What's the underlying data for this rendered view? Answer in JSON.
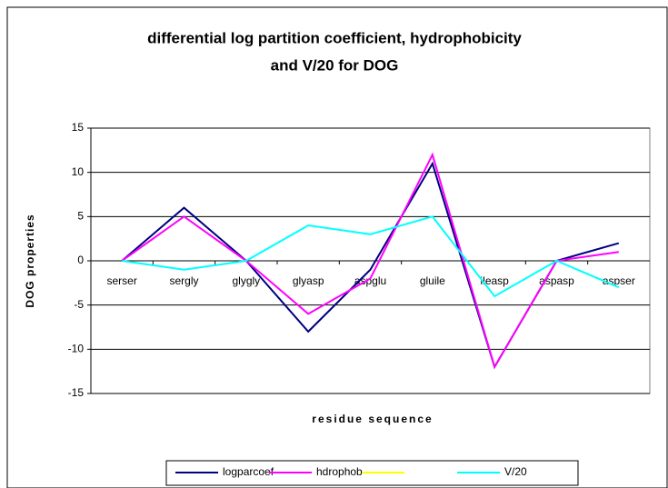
{
  "chart_data": {
    "type": "line",
    "title": [
      "differential log partition coefficient, hydrophobicity",
      "and V/20 for DOG"
    ],
    "x_label": "residue sequence",
    "y_label": "DOG properties",
    "categories": [
      "serser",
      "sergly",
      "glygly",
      "glyasp",
      "aspglu",
      "gluile",
      "ileasp",
      "aspasp",
      "aspser"
    ],
    "series": [
      {
        "name": "logparcoef",
        "color": "#000080",
        "values": [
          0,
          6,
          0,
          -8,
          -1,
          11,
          -12,
          0,
          2
        ]
      },
      {
        "name": "hdrophob",
        "color": "#ff00ff",
        "values": [
          0,
          5,
          0,
          -6,
          -2,
          12,
          -12,
          0,
          1
        ]
      },
      {
        "name": null,
        "color": "#ffff00",
        "values": [
          null,
          null,
          null,
          null,
          null,
          null,
          null,
          null,
          null
        ]
      },
      {
        "name": "V/20",
        "color": "#00ffff",
        "values": [
          0,
          -1,
          0,
          4,
          3,
          5,
          -4,
          0,
          -3
        ]
      }
    ],
    "ylim": [
      -15,
      15
    ],
    "yticks": [
      -15,
      -10,
      -5,
      0,
      5,
      10,
      15
    ],
    "grid": true,
    "legend": "bottom"
  }
}
